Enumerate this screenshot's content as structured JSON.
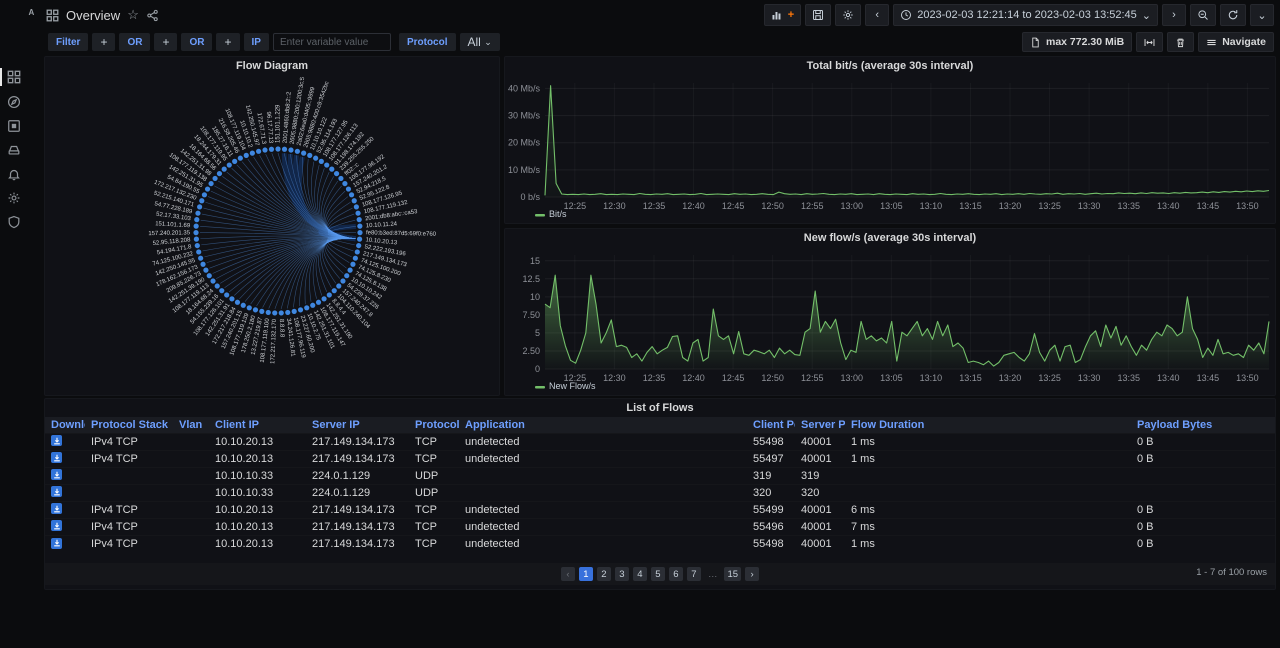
{
  "app": {
    "logo": "IOTA"
  },
  "icons": {
    "star": "☆",
    "chevron_left": "‹",
    "chevron_right": "›",
    "chevron_down": "⌄",
    "ellipsis": "…",
    "help": "?"
  },
  "header": {
    "title": "Overview",
    "time_range": "2023-02-03 12:21:14 to 2023-02-03 13:52:45"
  },
  "toolbar": {
    "max_label": "max 772.30 MiB",
    "navigate_label": "Navigate"
  },
  "filters": {
    "filter_label": "Filter",
    "plus1": "+",
    "or1": "OR",
    "plus2": "+",
    "or2": "OR",
    "plus3": "+",
    "ip_label": "IP",
    "input_placeholder": "Enter variable value",
    "protocol_label": "Protocol",
    "protocol_value": "All"
  },
  "sidebar": {
    "items": [
      "dashboards",
      "explore",
      "apps",
      "storage",
      "alerting",
      "configuration",
      "admin"
    ]
  },
  "flow_diagram": {
    "title": "Flow Diagram",
    "hub": "10.10.20.13",
    "node_color": "#3f87e0",
    "chord_color": "#5b9bf0",
    "nodes": [
      "151.101.1.229",
      "2001:4860:db8:2::2",
      "2605:9880:200:1200:3c:5",
      "2a02:6ea0:d405::9999",
      "2605:9880:400:c9:3542bc",
      "10.10.10.122",
      "52.95.114.193",
      "108.177.127.95",
      "108.177.126.113",
      "91.198.174.192",
      "239.255.255.250",
      "ff02::c",
      "108.177.96.192",
      "157.240.201.2",
      "52.94.218.5",
      "52.95.122.8",
      "108.177.126.95",
      "108.177.119.132",
      "2001:db8:abc::ca53",
      "10.10.11.24",
      "fe80:b3ed:87d5:69f0:e760",
      "10.10.20.13",
      "52.222.193.196",
      "217.149.134.173",
      "74.125.100.200",
      "74.125.8.230",
      "74.125.8.138",
      "10.10.10.242",
      "54.239.37.226",
      "157.240.247.8",
      "104.110.240.104",
      "8.8.4.4",
      "142.251.31.190",
      "108.177.119.147",
      "142.251.31.101",
      "10.10.2.75",
      "23.227.60.200",
      "108.177.96.119",
      "34.241.126.81",
      "8.8.8.8",
      "172.217.132.170",
      "108.177.119.100",
      "13.227.219.87",
      "178.250.2.180",
      "108.177.119.139",
      "157.240.201.15",
      "172.217.218.84",
      "142.251.31.91",
      "108.177.126.101",
      "54.155.239.16",
      "18.164.68.24",
      "108.177.119.113",
      "142.251.39.190",
      "209.85.226.73",
      "178.162.156.173",
      "142.250.145.95",
      "74.125.100.232",
      "54.194.171.8",
      "52.95.118.208",
      "157.240.201.35",
      "151.101.1.69",
      "52.17.33.103",
      "54.77.228.189",
      "52.215.140.171",
      "172.217.132.230",
      "54.84.190.55",
      "142.251.31.95",
      "108.177.119.138",
      "142.251.31.98",
      "18.164.68.56",
      "18.244.179.31",
      "108.177.119.95",
      "185.27.16.11",
      "216.58.205.46",
      "108.177.119.104",
      "10.10.10.2",
      "142.250.145.97",
      "172.67.71.3",
      "96.17.77.13"
    ]
  },
  "chart_data": [
    {
      "type": "line",
      "title": "Total bit/s (average 30s interval)",
      "legend": [
        "Bit/s"
      ],
      "color": "#73bf69",
      "grid": true,
      "legend_position": "bottom-left",
      "y_unit": "Mb/s",
      "ylim": [
        0,
        42
      ],
      "y_ticks": [
        {
          "v": 0,
          "label": "0 b/s"
        },
        {
          "v": 10,
          "label": "10 Mb/s"
        },
        {
          "v": 20,
          "label": "20 Mb/s"
        },
        {
          "v": 30,
          "label": "30 Mb/s"
        },
        {
          "v": 40,
          "label": "40 Mb/s"
        }
      ],
      "x_ticks": [
        "12:25",
        "12:30",
        "12:35",
        "12:40",
        "12:45",
        "12:50",
        "12:55",
        "13:00",
        "13:05",
        "13:10",
        "13:15",
        "13:20",
        "13:25",
        "13:30",
        "13:35",
        "13:40",
        "13:45",
        "13:50"
      ],
      "x_range_minutes": 91.5,
      "x_first_tick_minute": 3.77,
      "x_tick_step_minutes": 5,
      "fill_opacity": 0.18,
      "values": [
        0.6,
        41,
        5,
        1.1,
        0.9,
        1,
        0.9,
        1.1,
        0.9,
        1,
        1.2,
        0.9,
        1,
        0.9,
        1.1,
        1,
        0.9,
        1.3,
        1,
        0.9,
        1.1,
        1,
        1.2,
        0.9,
        1,
        1.1,
        0.9,
        1,
        1.3,
        0.9,
        1,
        1.1,
        1,
        0.9,
        1.2,
        1,
        1.1,
        0.9,
        1,
        1.2,
        1,
        0.9,
        1.8,
        1.2,
        1,
        1.1,
        0.9,
        1.2,
        1,
        1.1,
        1.3,
        1,
        0.9,
        1.1,
        1,
        1.2,
        0.9,
        1,
        1.1,
        0.9,
        1.2,
        1,
        0.9,
        1.1,
        1,
        0.9,
        1.2,
        1,
        1.1,
        0.9,
        1,
        1.3,
        1,
        0.9,
        1.1,
        1,
        1.2,
        1,
        0.9,
        1.1,
        1,
        1.2,
        0.9,
        1.1,
        1,
        1.2,
        1,
        1.3,
        1.1,
        1,
        1.2,
        1.1,
        1.4,
        1,
        1.2,
        1.1,
        1.3,
        1,
        1.2,
        1.4,
        1.1,
        1.3,
        1.2,
        1.5,
        1.3,
        1.4,
        1.2,
        1.5,
        1.3,
        1.6,
        1.4,
        1.5,
        1.3,
        1.6,
        1.4,
        1.7,
        1.5,
        1.6,
        1.8,
        1.6,
        1.9,
        1.7,
        2,
        1.8,
        2.1,
        1.9,
        2.2,
        2,
        2.3,
        2.1,
        2.4
      ]
    },
    {
      "type": "area",
      "title": "New flow/s (average 30s interval)",
      "legend": [
        "New Flow/s"
      ],
      "color": "#73bf69",
      "grid": true,
      "legend_position": "bottom-left",
      "y_unit": "flows/s",
      "ylim": [
        0,
        15.8
      ],
      "y_ticks": [
        {
          "v": 0,
          "label": "0"
        },
        {
          "v": 2.5,
          "label": "2.50"
        },
        {
          "v": 5,
          "label": "5"
        },
        {
          "v": 7.5,
          "label": "7.50"
        },
        {
          "v": 10,
          "label": "10"
        },
        {
          "v": 12.5,
          "label": "12.5"
        },
        {
          "v": 15,
          "label": "15"
        }
      ],
      "x_ticks": [
        "12:25",
        "12:30",
        "12:35",
        "12:40",
        "12:45",
        "12:50",
        "12:55",
        "13:00",
        "13:05",
        "13:10",
        "13:15",
        "13:20",
        "13:25",
        "13:30",
        "13:35",
        "13:40",
        "13:45",
        "13:50"
      ],
      "x_range_minutes": 91.5,
      "x_first_tick_minute": 3.77,
      "x_tick_step_minutes": 5,
      "fill_opacity": 0.5,
      "values": [
        9,
        8.5,
        13,
        6,
        3.2,
        1.2,
        0.8,
        2.6,
        5,
        13,
        9,
        3.6,
        5,
        6.8,
        3.1,
        3.3,
        3,
        1.6,
        2.1,
        1.1,
        2.3,
        3.1,
        2.1,
        2.6,
        3,
        4.5,
        4.6,
        1.6,
        1.1,
        3.6,
        4.1,
        1.1,
        1.6,
        8.3,
        4.6,
        4.1,
        4.6,
        2.1,
        5.2,
        2.1,
        1.9,
        2.6,
        2.4,
        2.1,
        2.6,
        1.6,
        2.9,
        2.1,
        2.6,
        2,
        1.9,
        5.1,
        5.6,
        10.8,
        5.1,
        6.6,
        5.6,
        6.9,
        3.6,
        1.3,
        2.6,
        2.3,
        6.6,
        4.1,
        4.6,
        3.9,
        4.3,
        3.6,
        6.6,
        1.1,
        5.1,
        4.6,
        5.6,
        6.6,
        4.6,
        5.6,
        4.1,
        6.6,
        4.6,
        6.1,
        3.1,
        3.6,
        2.9,
        0.9,
        1.1,
        0.9,
        0.6,
        1.1,
        0.4,
        0.9,
        1.9,
        2.1,
        2.3,
        1.6,
        1.1,
        2.1,
        4.9,
        2.3,
        1.1,
        2.6,
        3.3,
        1.1,
        3.1,
        3.3,
        0.9,
        1.3,
        3.1,
        4.6,
        5.3,
        3.1,
        6.1,
        4.3,
        5.9,
        3.3,
        4.6,
        3.1,
        1.9,
        3.3,
        2.6,
        4.1,
        5.1,
        4.6,
        6.1,
        5.6,
        4.6,
        5.1,
        10,
        5.6,
        4.1,
        1.6,
        2.9,
        1.9,
        4.1,
        2.1,
        2.3,
        1.9,
        2.1,
        1.6,
        3.3,
        2.6,
        3.6,
        2.1,
        6.6
      ]
    }
  ],
  "table": {
    "title": "List of Flows",
    "columns": [
      "Download",
      "Protocol Stack",
      "Vlan",
      "Client IP",
      "Server IP",
      "Protocol",
      "Application",
      "Client Port",
      "Server Port",
      "Flow Duration",
      "Payload Bytes"
    ],
    "rows": [
      [
        "IPv4 TCP",
        "",
        "10.10.20.13",
        "217.149.134.173",
        "TCP",
        "undetected",
        "55498",
        "40001",
        "1 ms",
        "0 B"
      ],
      [
        "IPv4 TCP",
        "",
        "10.10.20.13",
        "217.149.134.173",
        "TCP",
        "undetected",
        "55497",
        "40001",
        "1 ms",
        "0 B"
      ],
      [
        "",
        "",
        "10.10.10.33",
        "224.0.1.129",
        "UDP",
        "",
        "319",
        "319",
        "",
        ""
      ],
      [
        "",
        "",
        "10.10.10.33",
        "224.0.1.129",
        "UDP",
        "",
        "320",
        "320",
        "",
        ""
      ],
      [
        "IPv4 TCP",
        "",
        "10.10.20.13",
        "217.149.134.173",
        "TCP",
        "undetected",
        "55499",
        "40001",
        "6 ms",
        "0 B"
      ],
      [
        "IPv4 TCP",
        "",
        "10.10.20.13",
        "217.149.134.173",
        "TCP",
        "undetected",
        "55496",
        "40001",
        "7 ms",
        "0 B"
      ],
      [
        "IPv4 TCP",
        "",
        "10.10.20.13",
        "217.149.134.173",
        "TCP",
        "undetected",
        "55498",
        "40001",
        "1 ms",
        "0 B"
      ]
    ],
    "pagination": {
      "prev": "‹",
      "next": "›",
      "pages": [
        "1",
        "2",
        "3",
        "4",
        "5",
        "6",
        "7",
        "…",
        "15"
      ],
      "active": "1",
      "summary": "1 - 7 of 100 rows"
    }
  }
}
